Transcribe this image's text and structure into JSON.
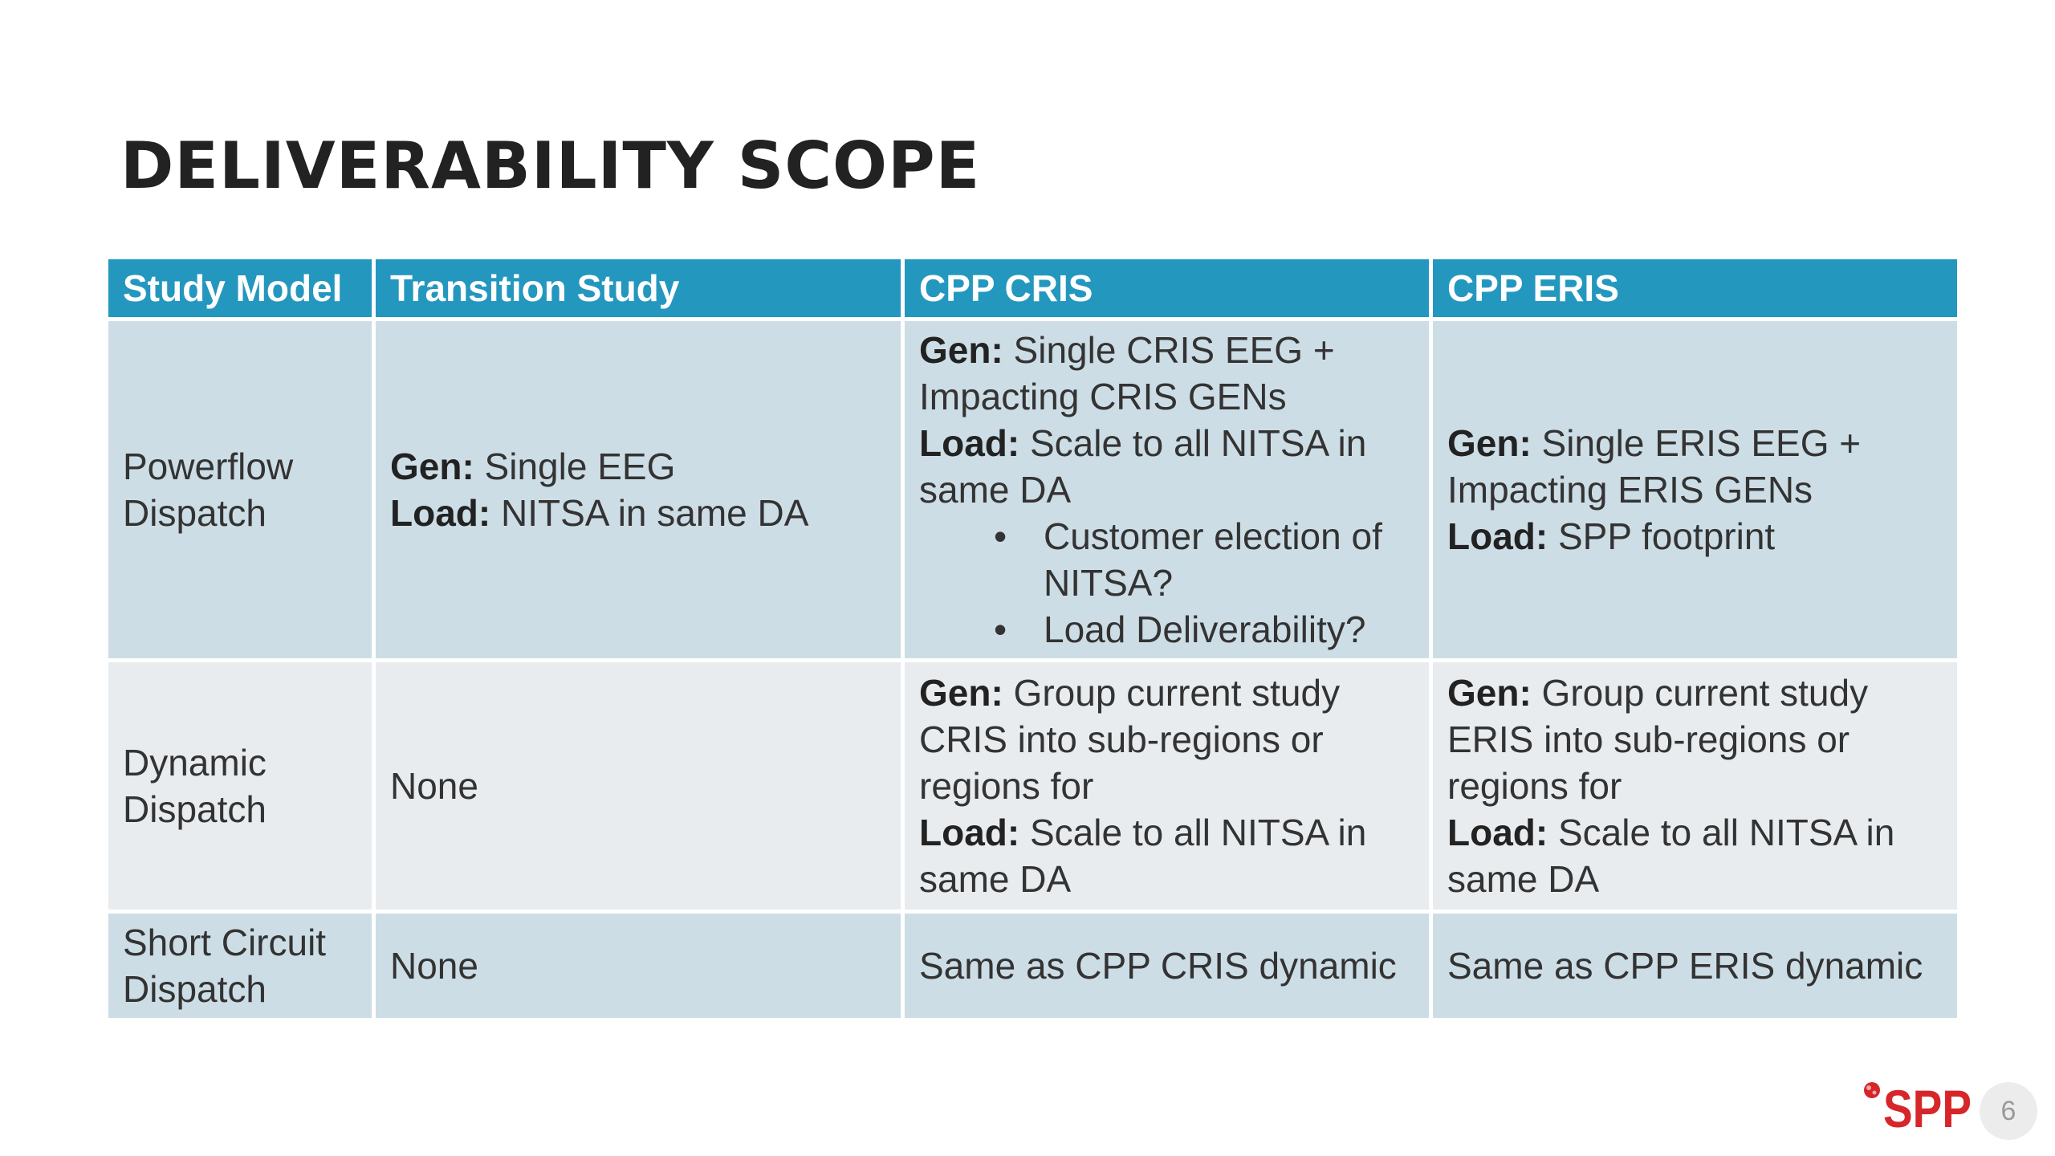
{
  "slide": {
    "title": "DELIVERABILITY SCOPE",
    "page_number": "6"
  },
  "logo": {
    "text": "SPP",
    "color": "#d7262a"
  },
  "table": {
    "header_color": "#2497bf",
    "columns": [
      "Study Model",
      "Transition Study",
      "CPP CRIS",
      "CPP ERIS"
    ],
    "rows": [
      {
        "model": [
          "Powerflow",
          "Dispatch"
        ],
        "transition": {
          "gen_label": "Gen:",
          "gen": " Single EEG",
          "load_label": "Load:",
          "load": " NITSA in same DA"
        },
        "cris": {
          "gen_label": "Gen:",
          "gen": " Single CRIS EEG + Impacting CRIS GENs",
          "load_label": "Load:",
          "load": " Scale to all NITSA in same DA",
          "bullets": [
            "Customer election of NITSA?",
            "Load Deliverability?"
          ]
        },
        "eris": {
          "gen_label": "Gen:",
          "gen": " Single ERIS EEG + Impacting ERIS GENs",
          "load_label": "Load:",
          "load": " SPP footprint"
        }
      },
      {
        "model": [
          "Dynamic",
          "Dispatch"
        ],
        "transition": "None",
        "cris": {
          "gen_label": "Gen:",
          "gen": " Group current study CRIS into sub-regions or regions for",
          "load_label": "Load:",
          "load": " Scale to all NITSA in same DA"
        },
        "eris": {
          "gen_label": "Gen:",
          "gen": " Group current study ERIS into sub-regions or regions for",
          "load_label": "Load:",
          "load": " Scale to all NITSA in same DA"
        }
      },
      {
        "model": [
          "Short Circuit",
          "Dispatch"
        ],
        "transition": "None",
        "cris": "Same as CPP CRIS dynamic",
        "eris": "Same as CPP ERIS dynamic"
      }
    ]
  }
}
